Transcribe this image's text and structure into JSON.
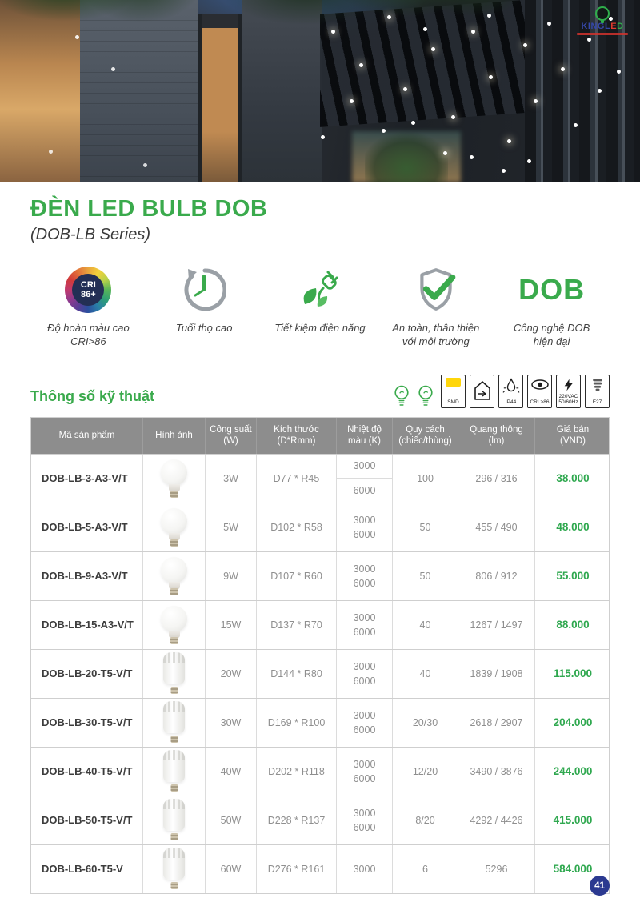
{
  "page": {
    "page_number": "41"
  },
  "logo": {
    "part1": "KINGL",
    "part2": "E",
    "part3": "D"
  },
  "header": {
    "title": "ĐÈN LED BULB DOB",
    "subtitle": "(DOB-LB Series)"
  },
  "features": [
    {
      "name": "cri",
      "badge_line1": "CRI",
      "badge_line2": "86+",
      "caption1": "Độ hoàn màu cao",
      "caption2": "CRI>86"
    },
    {
      "name": "lifespan",
      "caption1": "Tuổi thọ cao",
      "caption2": ""
    },
    {
      "name": "energy-saving",
      "caption1": "Tiết kiệm điện năng",
      "caption2": ""
    },
    {
      "name": "safety",
      "caption1": "An toàn, thân thiện",
      "caption2": "với môi trường"
    },
    {
      "name": "dob-technology",
      "label": "DOB",
      "caption1": "Công nghệ DOB",
      "caption2": "hiện đại"
    }
  ],
  "spec_section": {
    "heading": "Thông số kỹ thuật",
    "badges": {
      "smd": "SMD",
      "ip44": "IP44",
      "cri": "CRI >86",
      "volt1": "220VAC",
      "volt2": "50/60Hz",
      "e27": "E27"
    }
  },
  "table": {
    "headers": [
      {
        "line1": "Mã sản phẩm",
        "line2": ""
      },
      {
        "line1": "Hình ảnh",
        "line2": ""
      },
      {
        "line1": "Công suất",
        "line2": "(W)"
      },
      {
        "line1": "Kích thước",
        "line2": "(D*Rmm)"
      },
      {
        "line1": "Nhiệt độ",
        "line2": "màu (K)"
      },
      {
        "line1": "Quy cách",
        "line2": "(chiếc/thùng)"
      },
      {
        "line1": "Quang thông",
        "line2": "(lm)"
      },
      {
        "line1": "Giá bán",
        "line2": "(VND)"
      }
    ],
    "rows": [
      {
        "code": "DOB-LB-3-A3-V/T",
        "bulb_shape": "A-bulb",
        "power": "3W",
        "size": "D77 * R45",
        "temps": [
          "3000",
          "6000"
        ],
        "temp_split": true,
        "qty": "100",
        "lumens": "296 / 316",
        "price": "38.000"
      },
      {
        "code": "DOB-LB-5-A3-V/T",
        "bulb_shape": "A-bulb",
        "power": "5W",
        "size": "D102 * R58",
        "temps": [
          "3000",
          "6000"
        ],
        "qty": "50",
        "lumens": "455 / 490",
        "price": "48.000"
      },
      {
        "code": "DOB-LB-9-A3-V/T",
        "bulb_shape": "A-bulb",
        "power": "9W",
        "size": "D107 * R60",
        "temps": [
          "3000",
          "6000"
        ],
        "qty": "50",
        "lumens": "806 / 912",
        "price": "55.000"
      },
      {
        "code": "DOB-LB-15-A3-V/T",
        "bulb_shape": "A-bulb",
        "power": "15W",
        "size": "D137 * R70",
        "temps": [
          "3000",
          "6000"
        ],
        "qty": "40",
        "lumens": "1267 / 1497",
        "price": "88.000"
      },
      {
        "code": "DOB-LB-20-T5-V/T",
        "bulb_shape": "T-bulb",
        "power": "20W",
        "size": "D144 * R80",
        "temps": [
          "3000",
          "6000"
        ],
        "qty": "40",
        "lumens": "1839 / 1908",
        "price": "115.000"
      },
      {
        "code": "DOB-LB-30-T5-V/T",
        "bulb_shape": "T-bulb",
        "power": "30W",
        "size": "D169 * R100",
        "temps": [
          "3000",
          "6000"
        ],
        "qty": "20/30",
        "lumens": "2618 / 2907",
        "price": "204.000"
      },
      {
        "code": "DOB-LB-40-T5-V/T",
        "bulb_shape": "T-bulb",
        "power": "40W",
        "size": "D202 * R118",
        "temps": [
          "3000",
          "6000"
        ],
        "qty": "12/20",
        "lumens": "3490 / 3876",
        "price": "244.000"
      },
      {
        "code": "DOB-LB-50-T5-V/T",
        "bulb_shape": "T-bulb",
        "power": "50W",
        "size": "D228 * R137",
        "temps": [
          "3000",
          "6000"
        ],
        "qty": "8/20",
        "lumens": "4292 / 4426",
        "price": "415.000"
      },
      {
        "code": "DOB-LB-60-T5-V",
        "bulb_shape": "T-bulb",
        "power": "60W",
        "size": "D276 * R161",
        "temps": [
          "3000"
        ],
        "qty": "6",
        "lumens": "5296",
        "price": "584.000"
      }
    ]
  },
  "colors": {
    "brand_green": "#3aaa4c",
    "price_green": "#2fa84f",
    "table_header_gray": "#8d8d8d",
    "page_badge_navy": "#2b3990",
    "smd_yellow": "#ffd60a"
  }
}
